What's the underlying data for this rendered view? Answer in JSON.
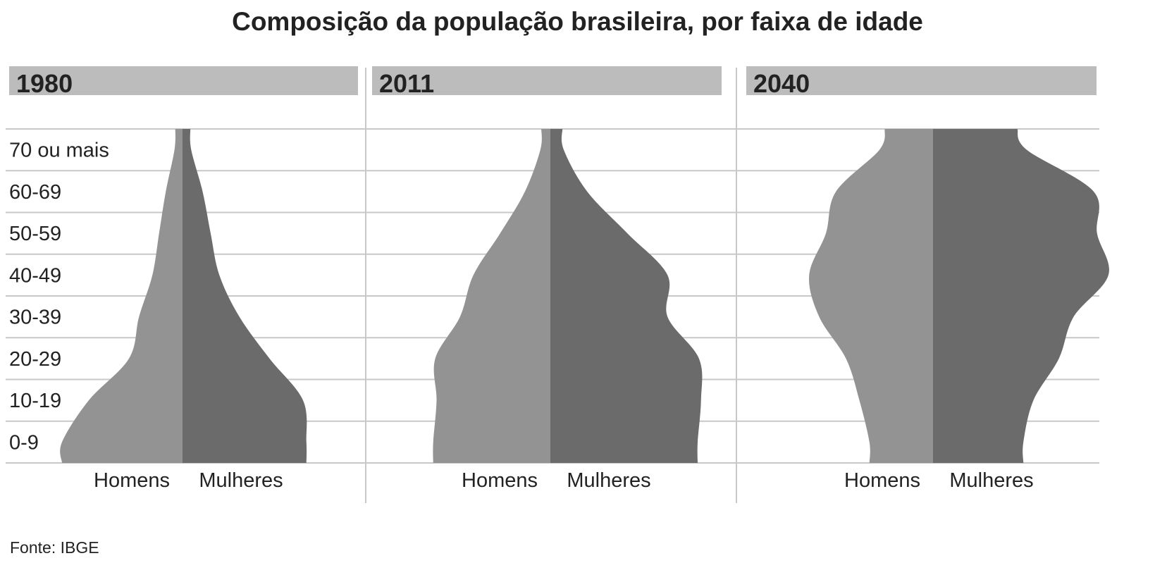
{
  "title": "Composição da população brasileira, por faixa de idade",
  "source": "Fonte: IBGE",
  "colors": {
    "men": "#939393",
    "women": "#6b6b6b",
    "header_band": "#bcbcbc",
    "grid": "#c8c8c8",
    "text": "#222222"
  },
  "chart_data": [
    {
      "type": "area",
      "year": "1980",
      "age_groups": [
        "0-9",
        "10-19",
        "20-29",
        "30-39",
        "40-49",
        "50-59",
        "60-69",
        "70 ou mais"
      ],
      "series": [
        {
          "name": "Homens",
          "values": [
            18,
            14,
            8,
            6.5,
            4.5,
            3.5,
            2.5,
            1.2
          ]
        },
        {
          "name": "Mulheres",
          "values": [
            18.5,
            18,
            13,
            8.5,
            5.5,
            4.2,
            3,
            1.3
          ]
        }
      ],
      "x_labels": [
        "Homens",
        "Mulheres"
      ]
    },
    {
      "type": "area",
      "year": "2011",
      "age_groups": [
        "0-9",
        "10-19",
        "20-29",
        "30-39",
        "40-49",
        "50-59",
        "60-69",
        "70 ou mais"
      ],
      "series": [
        {
          "name": "Homens",
          "values": [
            17.5,
            17,
            17.2,
            13.5,
            11.5,
            7.5,
            3.8,
            1.5
          ]
        },
        {
          "name": "Mulheres",
          "values": [
            22,
            22.5,
            22.2,
            17.5,
            17.5,
            11.5,
            5.5,
            2
          ]
        }
      ],
      "x_labels": [
        "Homens",
        "Mulheres"
      ]
    },
    {
      "type": "area",
      "year": "2040",
      "age_groups": [
        "0-9",
        "10-19",
        "20-29",
        "30-39",
        "40-49",
        "50-59",
        "60-69",
        "70 ou mais"
      ],
      "series": [
        {
          "name": "Homens",
          "values": [
            9.5,
            11,
            13,
            17,
            18.5,
            16,
            14.5,
            8
          ]
        },
        {
          "name": "Mulheres",
          "values": [
            13.5,
            15,
            18.8,
            21,
            26.2,
            24.5,
            24,
            14
          ]
        }
      ],
      "x_labels": [
        "Homens",
        "Mulheres"
      ]
    }
  ]
}
